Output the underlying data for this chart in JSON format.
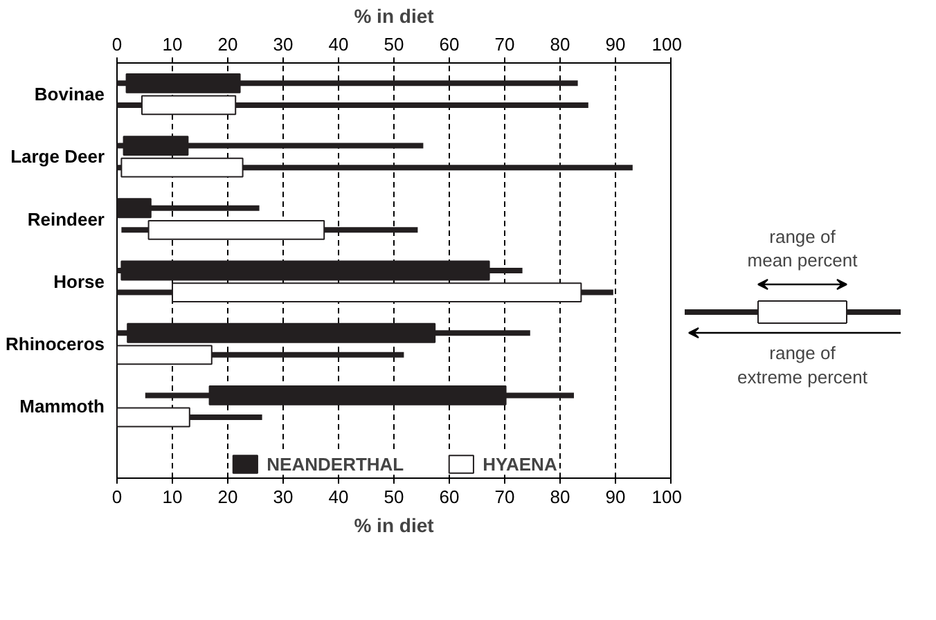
{
  "chart_data": {
    "type": "bar",
    "orientation": "horizontal",
    "xlabel": "% in diet",
    "x2label": "% in diet",
    "categories": [
      "Bovinae",
      "Large Deer",
      "Reindeer",
      "Horse",
      "Rhinoceros",
      "Mammoth"
    ],
    "xlim": [
      0,
      100
    ],
    "xticks": [
      0,
      10,
      20,
      30,
      40,
      50,
      60,
      70,
      80,
      90,
      100
    ],
    "x2lim": [
      0,
      100
    ],
    "x2ticks": [
      0,
      10,
      20,
      30,
      40,
      50,
      60,
      70,
      80,
      90,
      100
    ],
    "grid": "x",
    "legend": "bottom",
    "annotations": [
      "range of mean percent",
      "range of extreme percent"
    ],
    "series": [
      {
        "name": "NEANDERTHAL",
        "color": "#231f20",
        "base": [
          1.7,
          1.2,
          0,
          0.8,
          1.9,
          16.7
        ],
        "values": [
          20.5,
          11.6,
          6.1,
          66.4,
          55.5,
          53.5
        ],
        "errors": [
          [
            0,
            83.2
          ],
          [
            0,
            55.3
          ],
          [
            0,
            25.7
          ],
          [
            0,
            73.2
          ],
          [
            0,
            74.6
          ],
          [
            5.1,
            82.5
          ]
        ]
      },
      {
        "name": "HYAENA",
        "color": "#ffffff",
        "base": [
          4.5,
          0.8,
          5.7,
          10,
          0,
          0
        ],
        "values": [
          16.9,
          21.9,
          31.7,
          73.8,
          17.1,
          13.1
        ],
        "errors": [
          [
            0,
            85.1
          ],
          [
            0,
            93.1
          ],
          [
            0.8,
            54.3
          ],
          [
            0,
            89.6
          ],
          [
            0,
            51.8
          ],
          [
            0,
            26.2
          ]
        ]
      }
    ]
  }
}
